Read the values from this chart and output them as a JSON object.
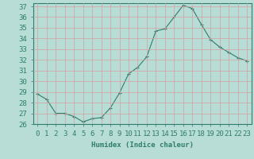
{
  "x": [
    0,
    1,
    2,
    3,
    4,
    5,
    6,
    7,
    8,
    9,
    10,
    11,
    12,
    13,
    14,
    15,
    16,
    17,
    18,
    19,
    20,
    21,
    22,
    23
  ],
  "y": [
    28.8,
    28.3,
    27.0,
    27.0,
    26.7,
    26.2,
    26.5,
    26.6,
    27.5,
    28.9,
    30.7,
    31.3,
    32.3,
    34.7,
    34.9,
    36.0,
    37.1,
    36.8,
    35.3,
    33.9,
    33.2,
    32.7,
    32.2,
    31.9
  ],
  "line_color": "#2e7d6e",
  "marker": "+",
  "marker_size": 3,
  "bg_color": "#b8ddd6",
  "grid_color": "#d4a0a0",
  "xlabel": "Humidex (Indice chaleur)",
  "ylim_min": 26,
  "ylim_max": 37,
  "xlim_min": -0.5,
  "xlim_max": 23.5,
  "yticks": [
    26,
    27,
    28,
    29,
    30,
    31,
    32,
    33,
    34,
    35,
    36,
    37
  ],
  "xticks": [
    0,
    1,
    2,
    3,
    4,
    5,
    6,
    7,
    8,
    9,
    10,
    11,
    12,
    13,
    14,
    15,
    16,
    17,
    18,
    19,
    20,
    21,
    22,
    23
  ],
  "label_fontsize": 6.5,
  "tick_fontsize": 6.5
}
